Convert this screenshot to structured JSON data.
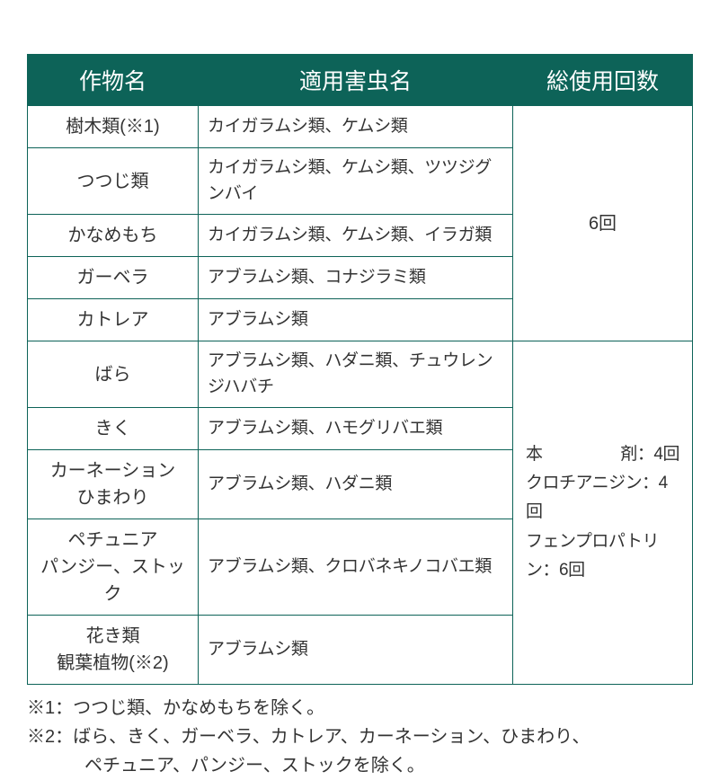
{
  "colors": {
    "header_bg": "#0d6358",
    "header_text": "#ffffff",
    "border": "#0d6358",
    "text": "#333333",
    "background": "#ffffff"
  },
  "header": {
    "col1": "作物名",
    "col2": "適用害虫名",
    "col3": "総使用回数"
  },
  "rows": [
    {
      "crop": "樹木類(※1)",
      "pest": "カイガラムシ類、ケムシ類"
    },
    {
      "crop": "つつじ類",
      "pest": "カイガラムシ類、ケムシ類、ツツジグンバイ"
    },
    {
      "crop": "かなめもち",
      "pest": "カイガラムシ類、ケムシ類、イラガ類"
    },
    {
      "crop": "ガーベラ",
      "pest": "アブラムシ類、コナジラミ類"
    },
    {
      "crop": "カトレア",
      "pest": "アブラムシ類"
    },
    {
      "crop": "ばら",
      "pest": "アブラムシ類、ハダニ類、チュウレンジハバチ"
    },
    {
      "crop": "きく",
      "pest": "アブラムシ類、ハモグリバエ類"
    },
    {
      "crop": "カーネーション\nひまわり",
      "pest": "アブラムシ類、ハダニ類"
    },
    {
      "crop": "ペチュニア\nパンジー、ストック",
      "pest": "アブラムシ類、クロバネキノコバエ類"
    },
    {
      "crop": "花き類\n観葉植物(※2)",
      "pest": "アブラムシ類"
    }
  ],
  "usage1": "6回",
  "usage2": {
    "l1a": "本",
    "l1b": "剤：4回",
    "l2": "クロチアニジン：4回",
    "l3": "フェンプロパトリン：6回"
  },
  "notes": {
    "n1": "※1：つつじ類、かなめもちを除く。",
    "n2a": "※2：ばら、きく、ガーベラ、カトレア、カーネーション、ひまわり、",
    "n2b": "ペチュニア、パンジー、ストックを除く。"
  }
}
